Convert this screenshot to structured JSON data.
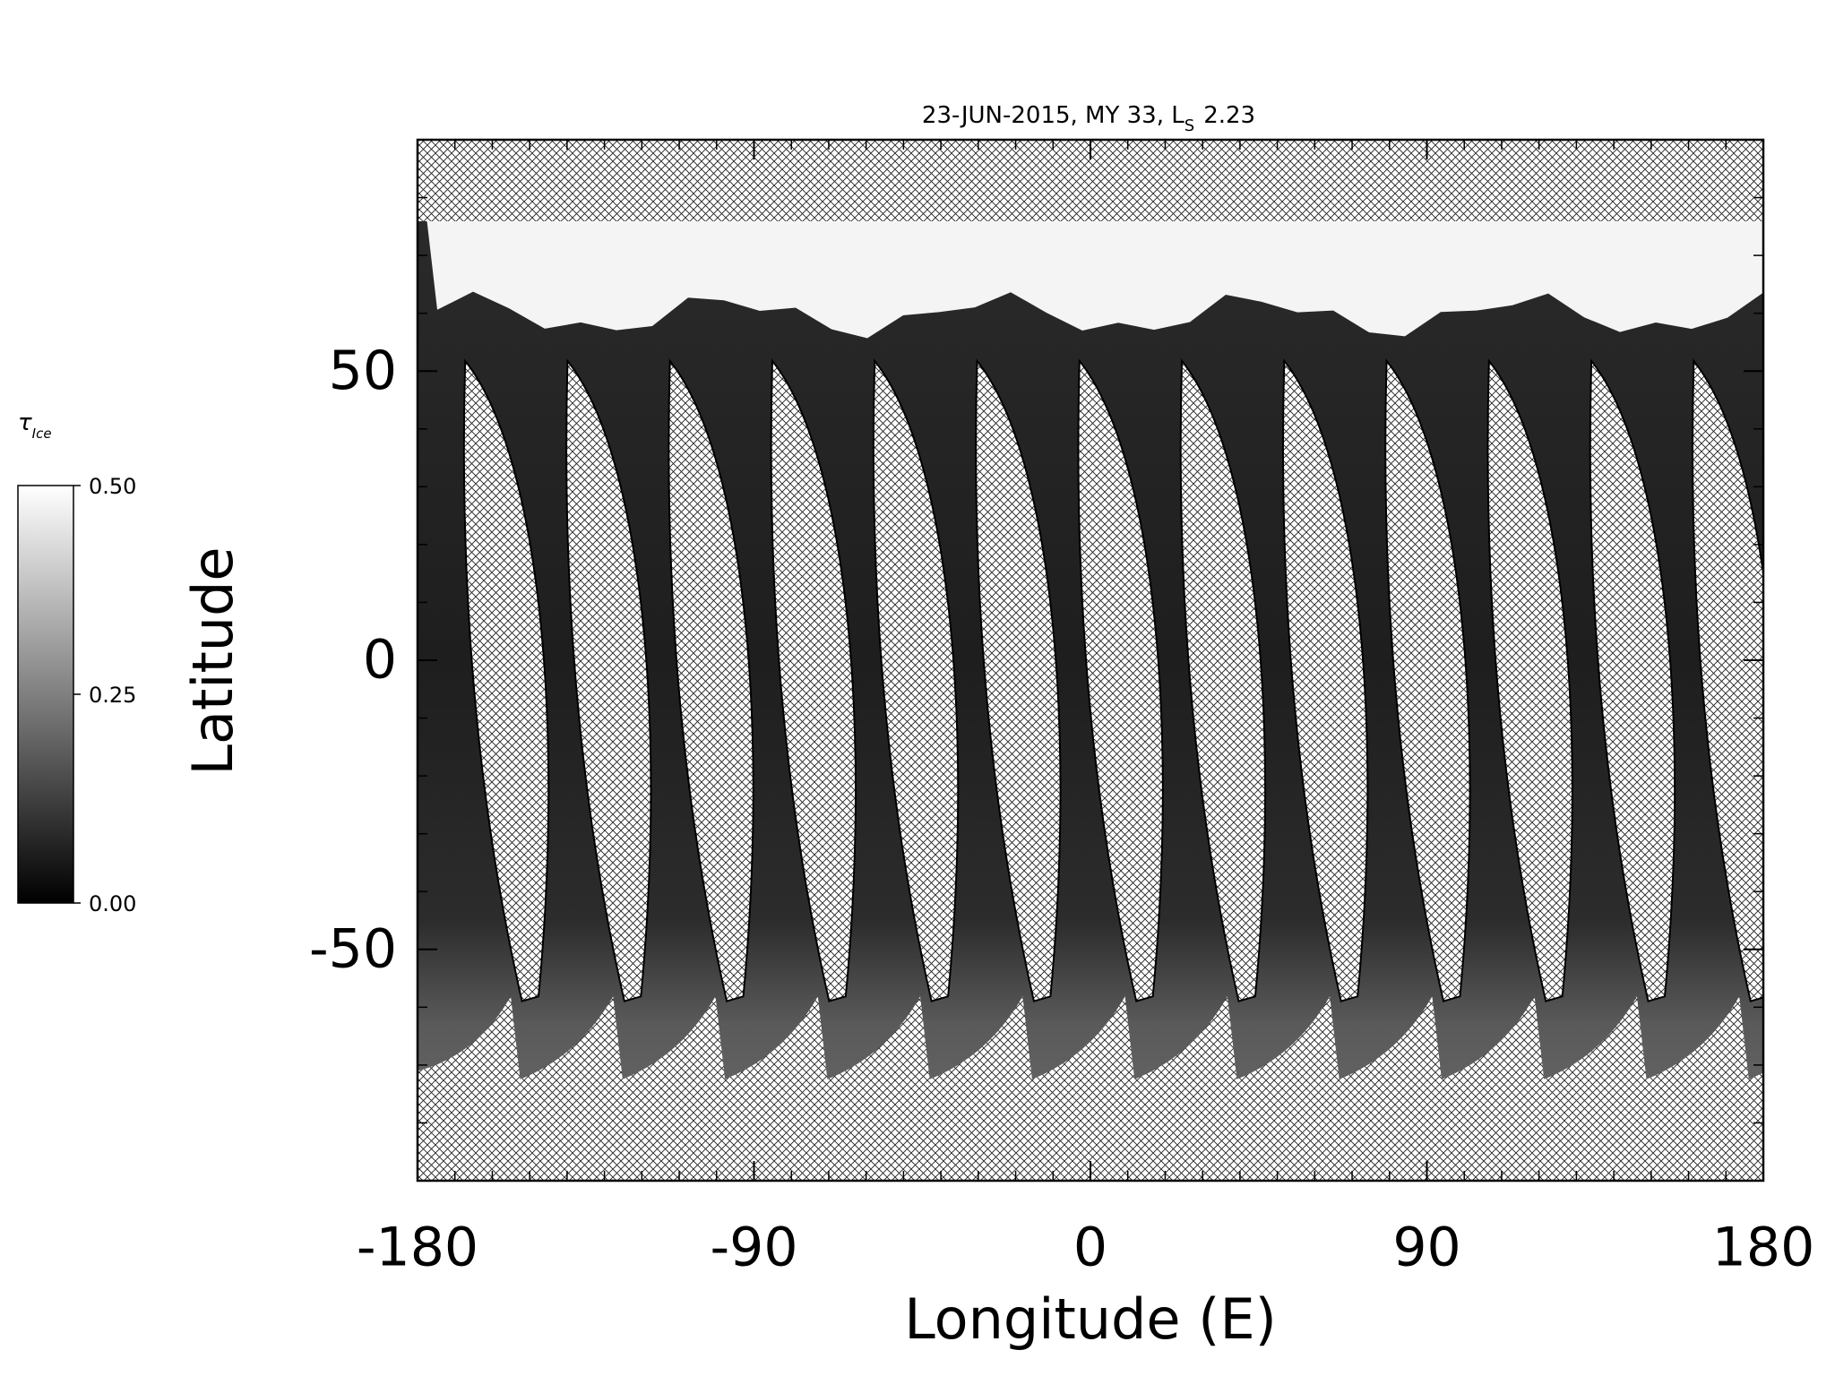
{
  "chart_data": {
    "type": "map",
    "title": "23-JUN-2015, MY 33,  L",
    "title_subscript": "S",
    "title_value": "2.23",
    "xlabel": "Longitude (E)",
    "ylabel": "Latitude",
    "xlim": [
      -180,
      180
    ],
    "xticks": [
      -180,
      -90,
      0,
      90,
      180
    ],
    "x_minor_step": 10,
    "ylim": [
      -90,
      90
    ],
    "yticks": [
      -50,
      0,
      50
    ],
    "y_minor_step": 10,
    "colorbar": {
      "label": "τ",
      "label_subscript": "Ice",
      "clim": [
        0,
        0.5
      ],
      "ticks": [
        {
          "value": 0,
          "label": "0.00"
        },
        {
          "value": 0.25,
          "label": "0.25"
        },
        {
          "value": 0.5,
          "label": "0.50"
        }
      ],
      "colors": [
        "#000000",
        "#ffffff"
      ]
    }
  }
}
